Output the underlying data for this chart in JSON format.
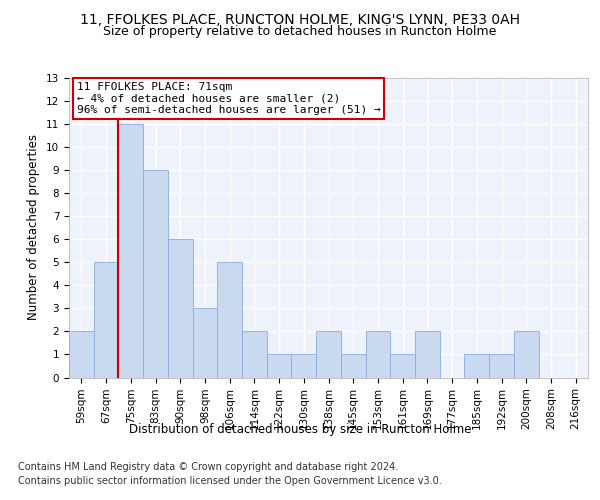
{
  "title_line1": "11, FFOLKES PLACE, RUNCTON HOLME, KING'S LYNN, PE33 0AH",
  "title_line2": "Size of property relative to detached houses in Runcton Holme",
  "xlabel": "Distribution of detached houses by size in Runcton Holme",
  "ylabel": "Number of detached properties",
  "bins": [
    "59sqm",
    "67sqm",
    "75sqm",
    "83sqm",
    "90sqm",
    "98sqm",
    "106sqm",
    "114sqm",
    "122sqm",
    "130sqm",
    "138sqm",
    "145sqm",
    "153sqm",
    "161sqm",
    "169sqm",
    "177sqm",
    "185sqm",
    "192sqm",
    "200sqm",
    "208sqm",
    "216sqm"
  ],
  "values": [
    2,
    5,
    11,
    9,
    6,
    3,
    5,
    2,
    1,
    1,
    2,
    1,
    2,
    1,
    2,
    0,
    1,
    1,
    2,
    0,
    0
  ],
  "bar_color": "#c9d9f0",
  "bar_edge_color": "#8aabe0",
  "bar_width": 1.0,
  "vline_x": 1.5,
  "vline_color": "#cc0000",
  "annotation_text": "11 FFOLKES PLACE: 71sqm\n← 4% of detached houses are smaller (2)\n96% of semi-detached houses are larger (51) →",
  "annotation_box_color": "#cc0000",
  "ylim": [
    0,
    13
  ],
  "yticks": [
    0,
    1,
    2,
    3,
    4,
    5,
    6,
    7,
    8,
    9,
    10,
    11,
    12,
    13
  ],
  "footer_line1": "Contains HM Land Registry data © Crown copyright and database right 2024.",
  "footer_line2": "Contains public sector information licensed under the Open Government Licence v3.0.",
  "background_color": "#eef2fa",
  "grid_color": "#ffffff",
  "title_fontsize": 10,
  "subtitle_fontsize": 9,
  "axis_label_fontsize": 8.5,
  "tick_fontsize": 7.5,
  "annotation_fontsize": 8,
  "footer_fontsize": 7
}
